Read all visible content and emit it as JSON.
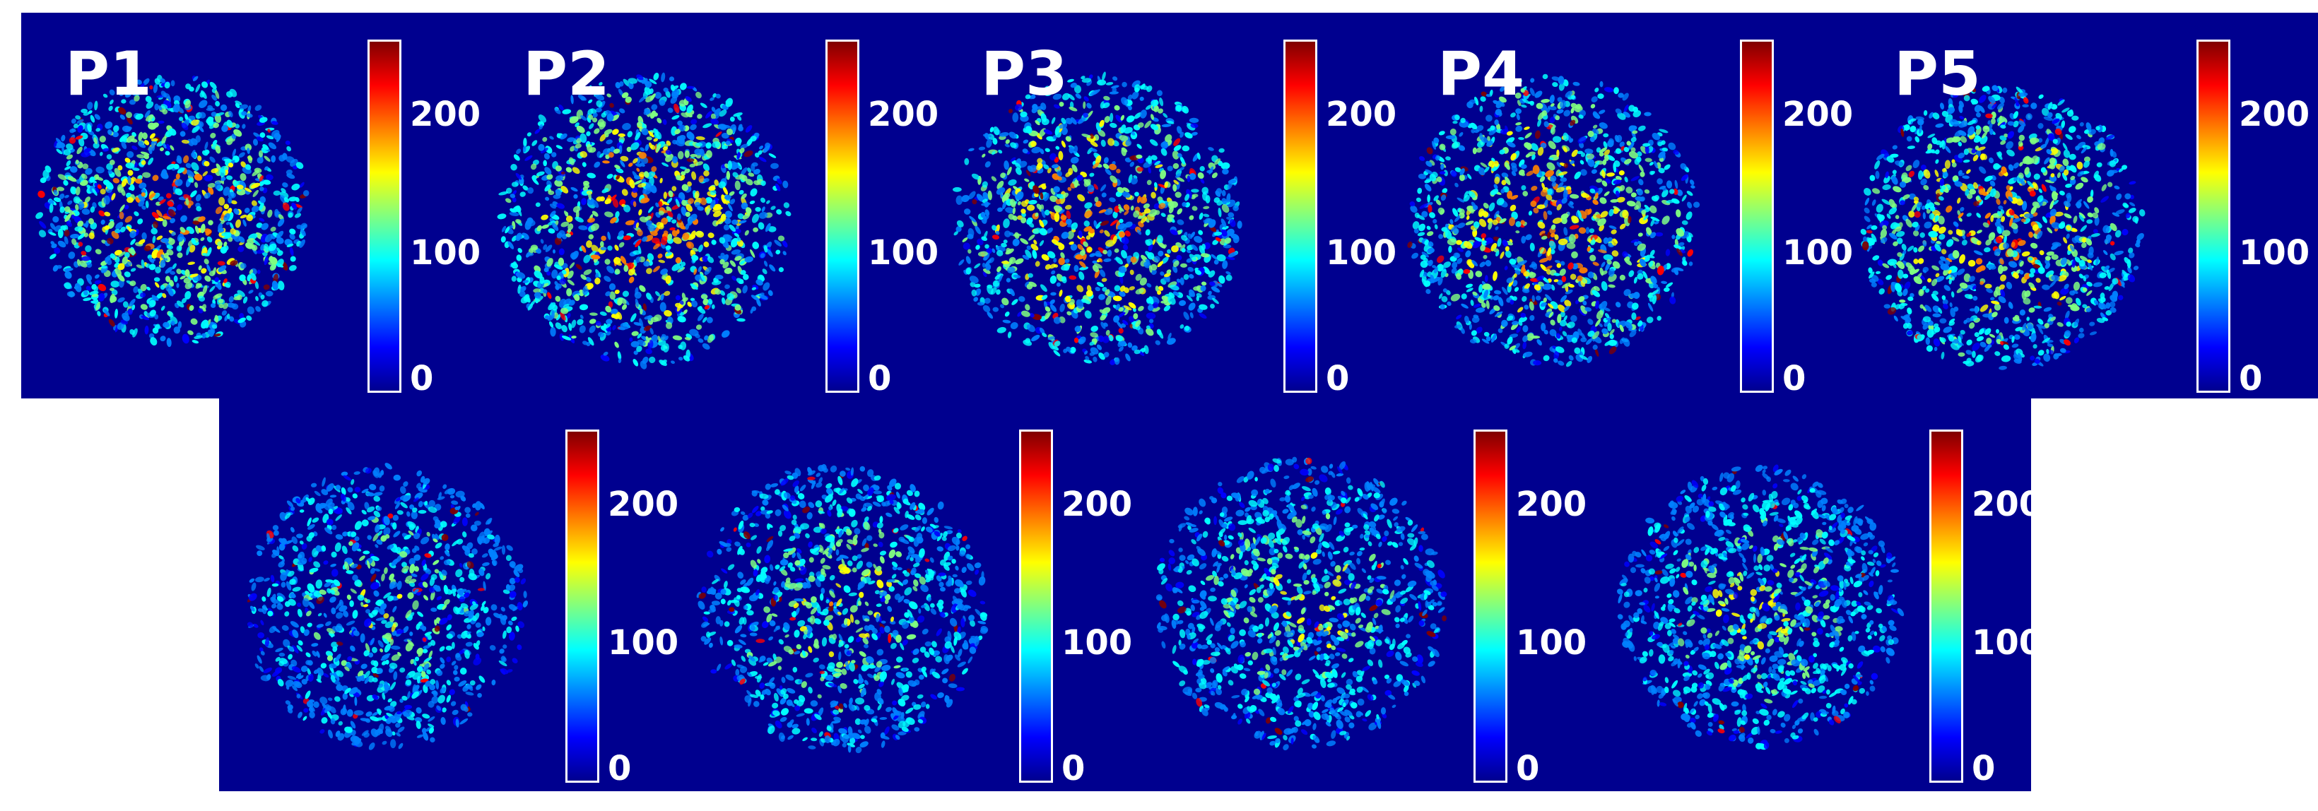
{
  "colorbar": {
    "ticks": [
      "200",
      "100",
      "0"
    ],
    "tick_values": [
      200,
      100,
      0
    ],
    "max_value": 255,
    "colormap": "jet"
  },
  "panels": [
    {
      "label": "P1"
    },
    {
      "label": "P2"
    },
    {
      "label": "P3"
    },
    {
      "label": "P4"
    },
    {
      "label": "P5"
    },
    {
      "label": ""
    },
    {
      "label": ""
    },
    {
      "label": ""
    },
    {
      "label": ""
    }
  ]
}
